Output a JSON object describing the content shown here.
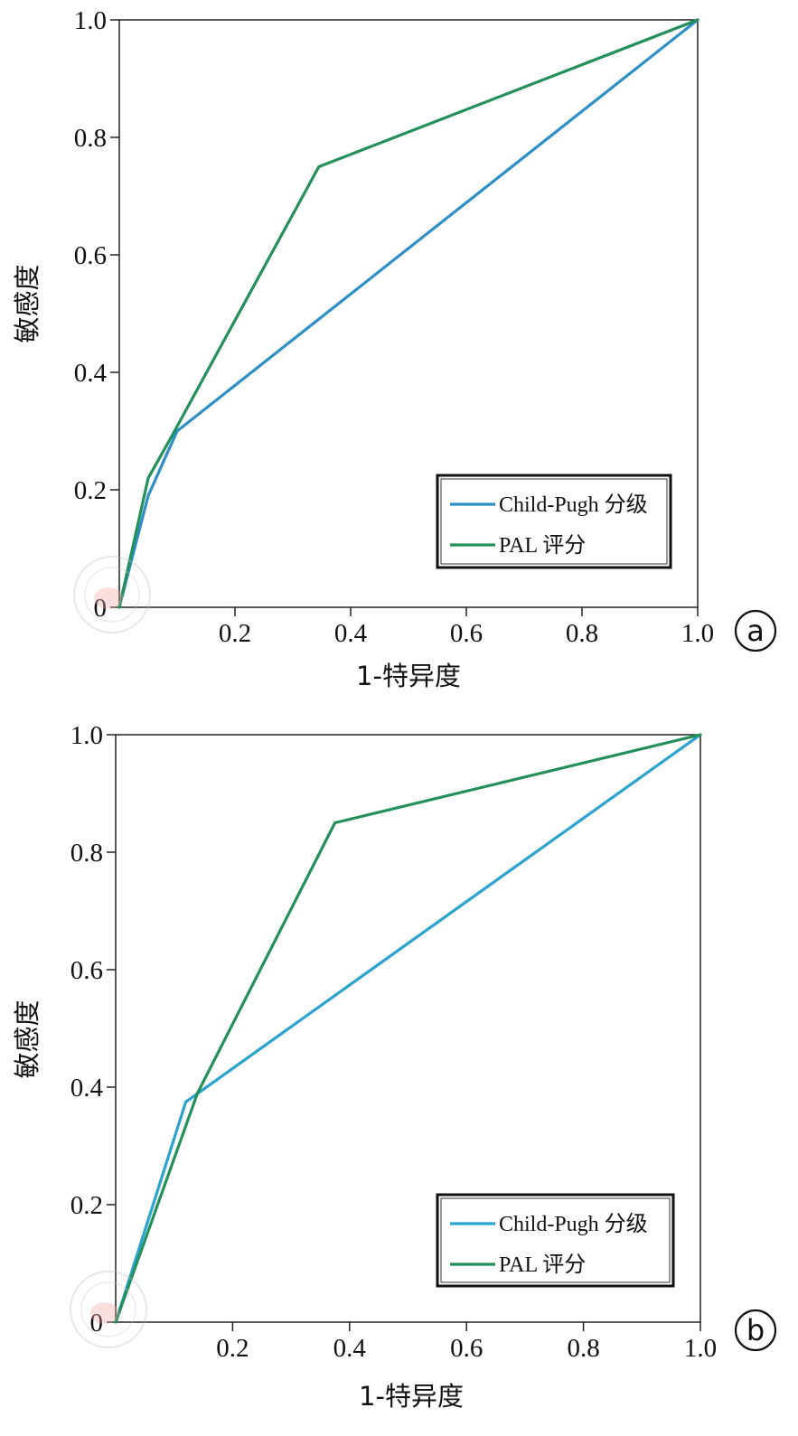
{
  "chart_data": [
    {
      "type": "line",
      "panel_label": "a",
      "xlabel": "1-特异度",
      "ylabel": "敏感度",
      "xlim": [
        0,
        1
      ],
      "ylim": [
        0,
        1
      ],
      "xticks": [
        {
          "v": 0.2,
          "label": "0.2"
        },
        {
          "v": 0.4,
          "label": "0.4"
        },
        {
          "v": 0.6,
          "label": "0.6"
        },
        {
          "v": 0.8,
          "label": "0.8"
        },
        {
          "v": 1.0,
          "label": "1.0"
        }
      ],
      "yticks": [
        {
          "v": 0,
          "label": "0"
        },
        {
          "v": 0.2,
          "label": "0.2"
        },
        {
          "v": 0.4,
          "label": "0.4"
        },
        {
          "v": 0.6,
          "label": "0.6"
        },
        {
          "v": 0.8,
          "label": "0.8"
        },
        {
          "v": 1.0,
          "label": "1.0"
        }
      ],
      "legend_position": "bottom-right",
      "grid": false,
      "series": [
        {
          "name": "Child-Pugh 分级",
          "color": "#2e8fc6",
          "points": [
            [
              0,
              0
            ],
            [
              0.05,
              0.19
            ],
            [
              0.1,
              0.3
            ],
            [
              1.0,
              1.0
            ]
          ]
        },
        {
          "name": "PAL 评分",
          "color": "#23905a",
          "points": [
            [
              0,
              0
            ],
            [
              0.05,
              0.22
            ],
            [
              0.09,
              0.29
            ],
            [
              0.345,
              0.75
            ],
            [
              1.0,
              1.0
            ]
          ]
        }
      ]
    },
    {
      "type": "line",
      "panel_label": "b",
      "xlabel": "1-特异度",
      "ylabel": "敏感度",
      "xlim": [
        0,
        1
      ],
      "ylim": [
        0,
        1
      ],
      "xticks": [
        {
          "v": 0.2,
          "label": "0.2"
        },
        {
          "v": 0.4,
          "label": "0.4"
        },
        {
          "v": 0.6,
          "label": "0.6"
        },
        {
          "v": 0.8,
          "label": "0.8"
        },
        {
          "v": 1.0,
          "label": "1.0"
        }
      ],
      "yticks": [
        {
          "v": 0,
          "label": "0"
        },
        {
          "v": 0.2,
          "label": "0.2"
        },
        {
          "v": 0.4,
          "label": "0.4"
        },
        {
          "v": 0.6,
          "label": "0.6"
        },
        {
          "v": 0.8,
          "label": "0.8"
        },
        {
          "v": 1.0,
          "label": "1.0"
        }
      ],
      "legend_position": "bottom-right",
      "grid": false,
      "series": [
        {
          "name": "Child-Pugh 分级",
          "color": "#2aa3d0",
          "points": [
            [
              0,
              0
            ],
            [
              0.12,
              0.375
            ],
            [
              1.0,
              1.0
            ]
          ]
        },
        {
          "name": "PAL 评分",
          "color": "#23905a",
          "points": [
            [
              0,
              0
            ],
            [
              0.14,
              0.39
            ],
            [
              0.375,
              0.85
            ],
            [
              1.0,
              1.0
            ]
          ]
        }
      ]
    }
  ]
}
